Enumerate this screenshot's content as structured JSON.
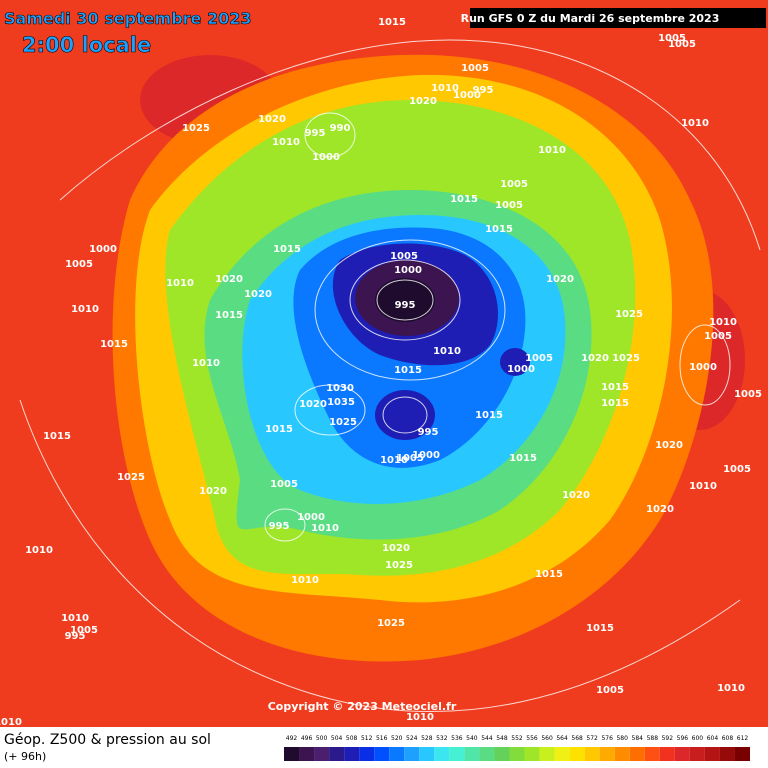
{
  "header": {
    "date": "Samedi 30 septembre 2023",
    "time": "2:00 locale",
    "run": "Run GFS 0 Z du Mardi 26 septembre 2023"
  },
  "footer": {
    "title": "Géop. Z500 & pression au sol",
    "lead": "(+ 96h)",
    "copyright": "Copyright © 2023 Meteociel.fr"
  },
  "legend": {
    "levels": [
      492,
      496,
      500,
      504,
      508,
      512,
      516,
      520,
      524,
      528,
      532,
      536,
      540,
      544,
      548,
      552,
      556,
      560,
      564,
      568,
      572,
      576,
      580,
      584,
      588,
      592,
      596,
      600,
      604,
      608,
      612
    ],
    "colors": [
      "#1f0b2e",
      "#3b1450",
      "#4b1e6e",
      "#2a1a8c",
      "#1e1eb4",
      "#0a2de6",
      "#0050ff",
      "#0a78ff",
      "#1ea0ff",
      "#28c8ff",
      "#3ce6f0",
      "#46f0d2",
      "#50e6aa",
      "#5adc82",
      "#64d25a",
      "#82dc3c",
      "#a0e628",
      "#c8f01e",
      "#f0f014",
      "#ffe100",
      "#ffc800",
      "#ffaa00",
      "#ff8c00",
      "#ff6e00",
      "#ff5014",
      "#f0321e",
      "#dc2828",
      "#c81e1e",
      "#b41414",
      "#960a0a",
      "#780000"
    ]
  },
  "isobars": [
    "1015",
    "1005",
    "1005",
    "1005",
    "1010",
    "995",
    "1000",
    "1020",
    "1025",
    "1020",
    "1010",
    "990",
    "995",
    "1010",
    "1000",
    "1010",
    "1005",
    "1015",
    "1005",
    "1015",
    "1000",
    "1015",
    "1005",
    "1000",
    "1005",
    "1010",
    "1020",
    "1020",
    "995",
    "1020",
    "1010",
    "1015",
    "1025",
    "1010",
    "1015",
    "1010",
    "1005",
    "1000",
    "1020",
    "1025",
    "1005",
    "1000",
    "1015",
    "1010",
    "1030",
    "1005",
    "1015",
    "1015",
    "1035",
    "1020",
    "1015",
    "995",
    "1015",
    "1025",
    "1015",
    "1010",
    "1005",
    "1000",
    "1015",
    "1020",
    "1005",
    "1025",
    "1005",
    "1010",
    "1020",
    "1020",
    "1020",
    "995",
    "1000",
    "1010",
    "1010",
    "1020",
    "1025",
    "1010",
    "1015",
    "1010",
    "1005",
    "995",
    "1025",
    "1015",
    "1005",
    "1010",
    "1010",
    "1010"
  ]
}
